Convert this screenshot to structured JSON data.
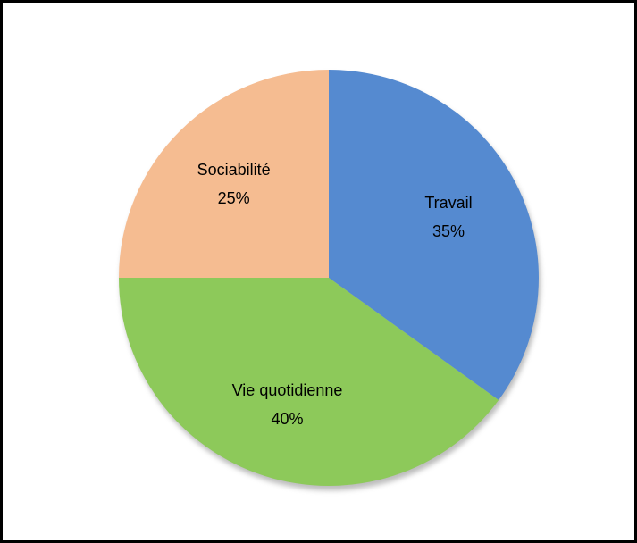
{
  "chart_data": {
    "type": "pie",
    "categories": [
      "Travail",
      "Vie quotidienne",
      "Sociabilité"
    ],
    "values": [
      35,
      40,
      25
    ],
    "value_labels": [
      "35%",
      "40%",
      "25%"
    ],
    "colors": [
      "#558ad0",
      "#8dc95a",
      "#f5bc91"
    ]
  }
}
